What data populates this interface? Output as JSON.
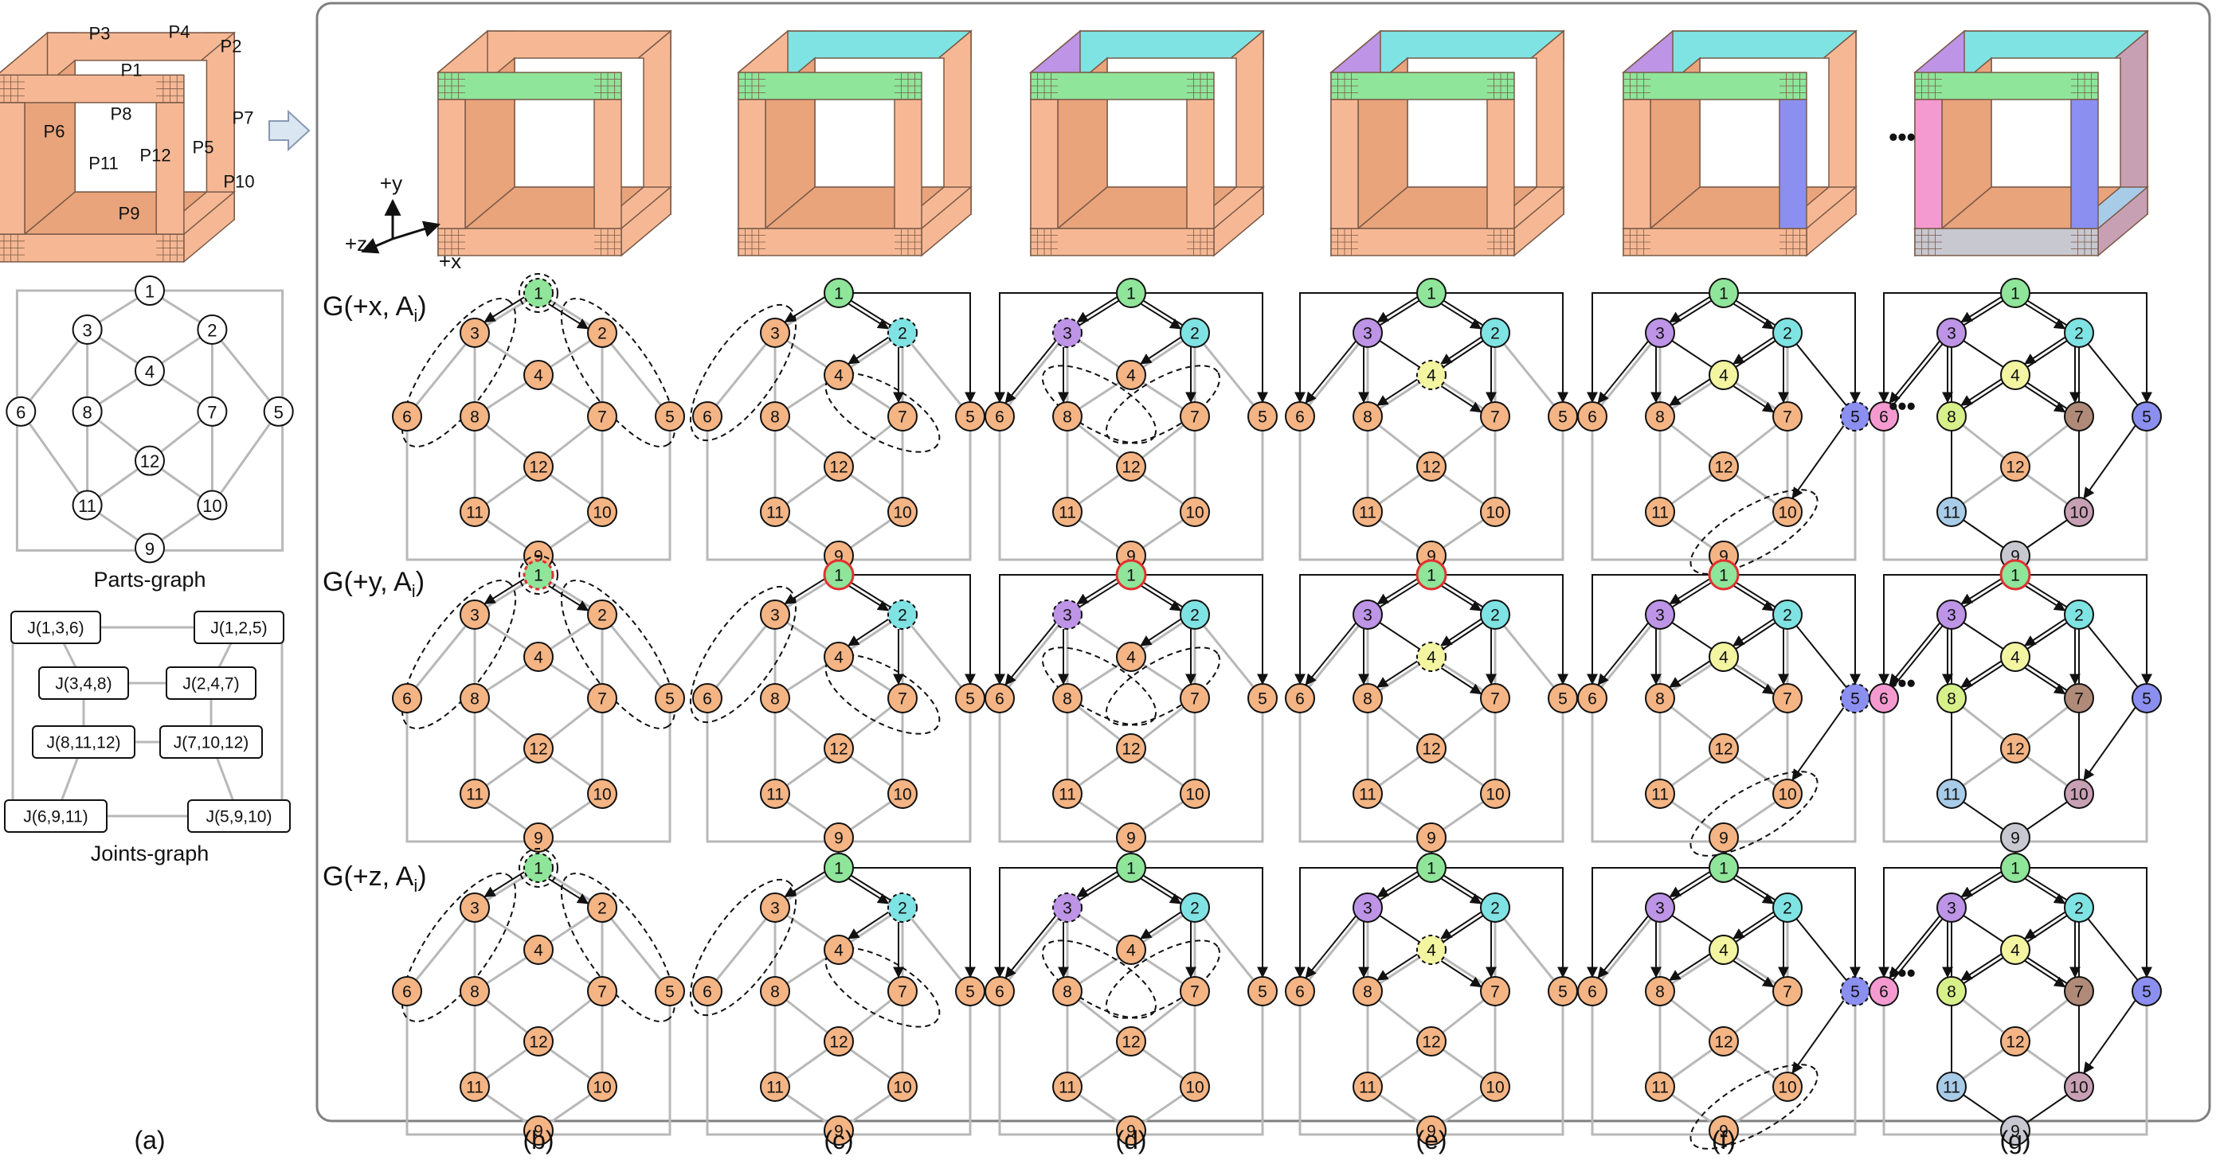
{
  "panel_a": {
    "cube_labels": [
      "P1",
      "P2",
      "P3",
      "P4",
      "P5",
      "P6",
      "P7",
      "P8",
      "P9",
      "P10",
      "P11",
      "P12"
    ],
    "parts_graph_caption": "Parts-graph",
    "joints_graph_caption": "Joints-graph",
    "joints": [
      "J(1,3,6)",
      "J(1,2,5)",
      "J(3,4,8)",
      "J(2,4,7)",
      "J(8,11,12)",
      "J(7,10,12)",
      "J(6,9,11)",
      "J(5,9,10)"
    ]
  },
  "axes": {
    "y": "+y",
    "z": "+z",
    "x": "+x"
  },
  "rows": [
    {
      "label": "G(+x, A",
      "sub": "i",
      "close": ")"
    },
    {
      "label": "G(+y, A",
      "sub": "i",
      "close": ")"
    },
    {
      "label": "G(+z, A",
      "sub": "i",
      "close": ")"
    }
  ],
  "column_captions": [
    "(a)",
    "(b)",
    "(c)",
    "(d)",
    "(e)",
    "(f)",
    "(g)"
  ],
  "ellipsis": "•••",
  "node_labels": [
    "1",
    "2",
    "3",
    "4",
    "5",
    "6",
    "7",
    "8",
    "9",
    "10",
    "11",
    "12"
  ],
  "colors": {
    "node_default": "#f4b484",
    "part_green": "#8fe59a",
    "part_cyan": "#7fe3e3",
    "part_purple": "#bd94e6",
    "part_yellow": "#f3f5a0",
    "part_blue": "#8b8ff0",
    "part_pink": "#f59ad0",
    "part_lime": "#d8f08a",
    "part_brown": "#b08a78",
    "part_lightblue": "#a8cce8",
    "part_mauve": "#c8a0b4",
    "part_gray": "#c8c8d0",
    "seed_outline": "#e03030",
    "edge_gray": "#b8b8b8",
    "cube_face": "#f6b894",
    "panel_border": "#808080"
  }
}
